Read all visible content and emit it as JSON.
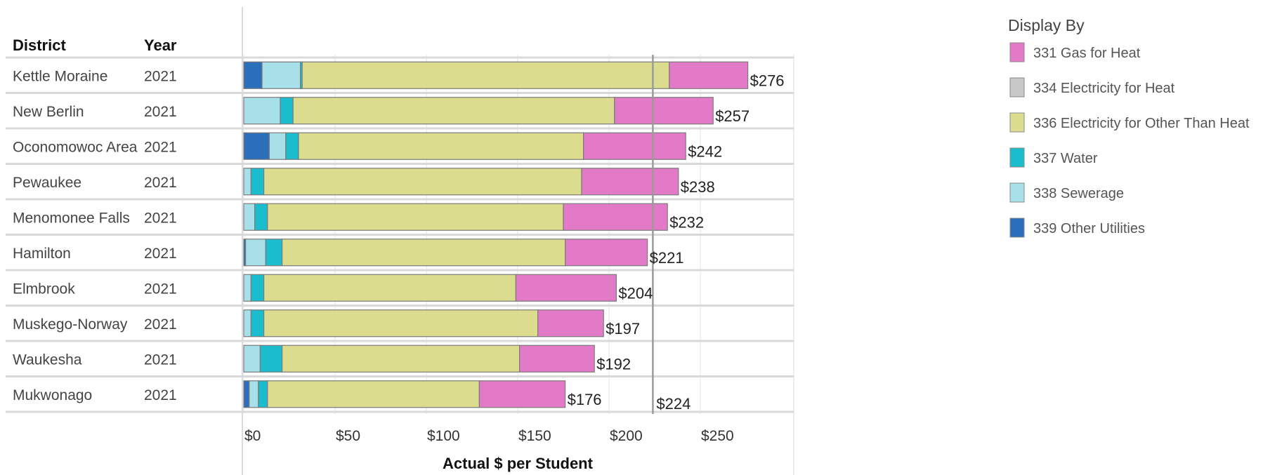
{
  "chart_data": {
    "type": "bar",
    "orientation": "horizontal",
    "stacked": true,
    "column_headers": {
      "district": "District",
      "year": "Year"
    },
    "districts": [
      "Kettle Moraine",
      "New Berlin",
      "Oconomowoc Area",
      "Pewaukee",
      "Menomonee Falls",
      "Hamilton",
      "Elmbrook",
      "Muskego-Norway",
      "Waukesha",
      "Mukwonago"
    ],
    "years": [
      "2021",
      "2021",
      "2021",
      "2021",
      "2021",
      "2021",
      "2021",
      "2021",
      "2021",
      "2021"
    ],
    "series": [
      {
        "name": "339 Other Utilities",
        "color": "#2b6fba",
        "values": [
          10,
          0,
          14,
          0,
          0,
          1,
          0,
          0,
          0,
          3
        ]
      },
      {
        "name": "338 Sewerage",
        "color": "#a8e0ea",
        "values": [
          21,
          20,
          9,
          4,
          6,
          11,
          4,
          4,
          9,
          5
        ]
      },
      {
        "name": "337 Water",
        "color": "#1bbccd",
        "values": [
          1,
          7,
          7,
          7,
          7,
          9,
          7,
          7,
          12,
          5
        ]
      },
      {
        "name": "336 Electricity for Other Than Heat",
        "color": "#dcdc8e",
        "values": [
          201,
          176,
          156,
          174,
          162,
          155,
          138,
          150,
          130,
          116
        ]
      },
      {
        "name": "334 Electricity for Heat",
        "color": "#c8c8c8",
        "values": [
          0,
          0,
          0,
          0,
          0,
          0,
          0,
          0,
          0,
          0
        ]
      },
      {
        "name": "331 Gas for Heat",
        "color": "#e27ac8",
        "values": [
          43,
          54,
          56,
          53,
          57,
          45,
          55,
          36,
          41,
          47
        ]
      }
    ],
    "totals": [
      "$276",
      "$257",
      "$242",
      "$238",
      "$232",
      "$221",
      "$204",
      "$197",
      "$192",
      "$176"
    ],
    "reference_line": {
      "value": 224,
      "label": "$224"
    },
    "xlabel": "Actual $ per Student",
    "ylabel": "",
    "xlim": [
      0,
      290
    ],
    "xticks": [
      0,
      50,
      100,
      150,
      200,
      250
    ],
    "xtick_labels": [
      "$0",
      "$50",
      "$100",
      "$150",
      "$200",
      "$250"
    ],
    "legend": {
      "title": "Display By",
      "position": "right",
      "order": [
        "331 Gas for Heat",
        "334 Electricity for Heat",
        "336 Electricity for Other Than Heat",
        "337 Water",
        "338 Sewerage",
        "339 Other Utilities"
      ]
    },
    "grid": true
  }
}
